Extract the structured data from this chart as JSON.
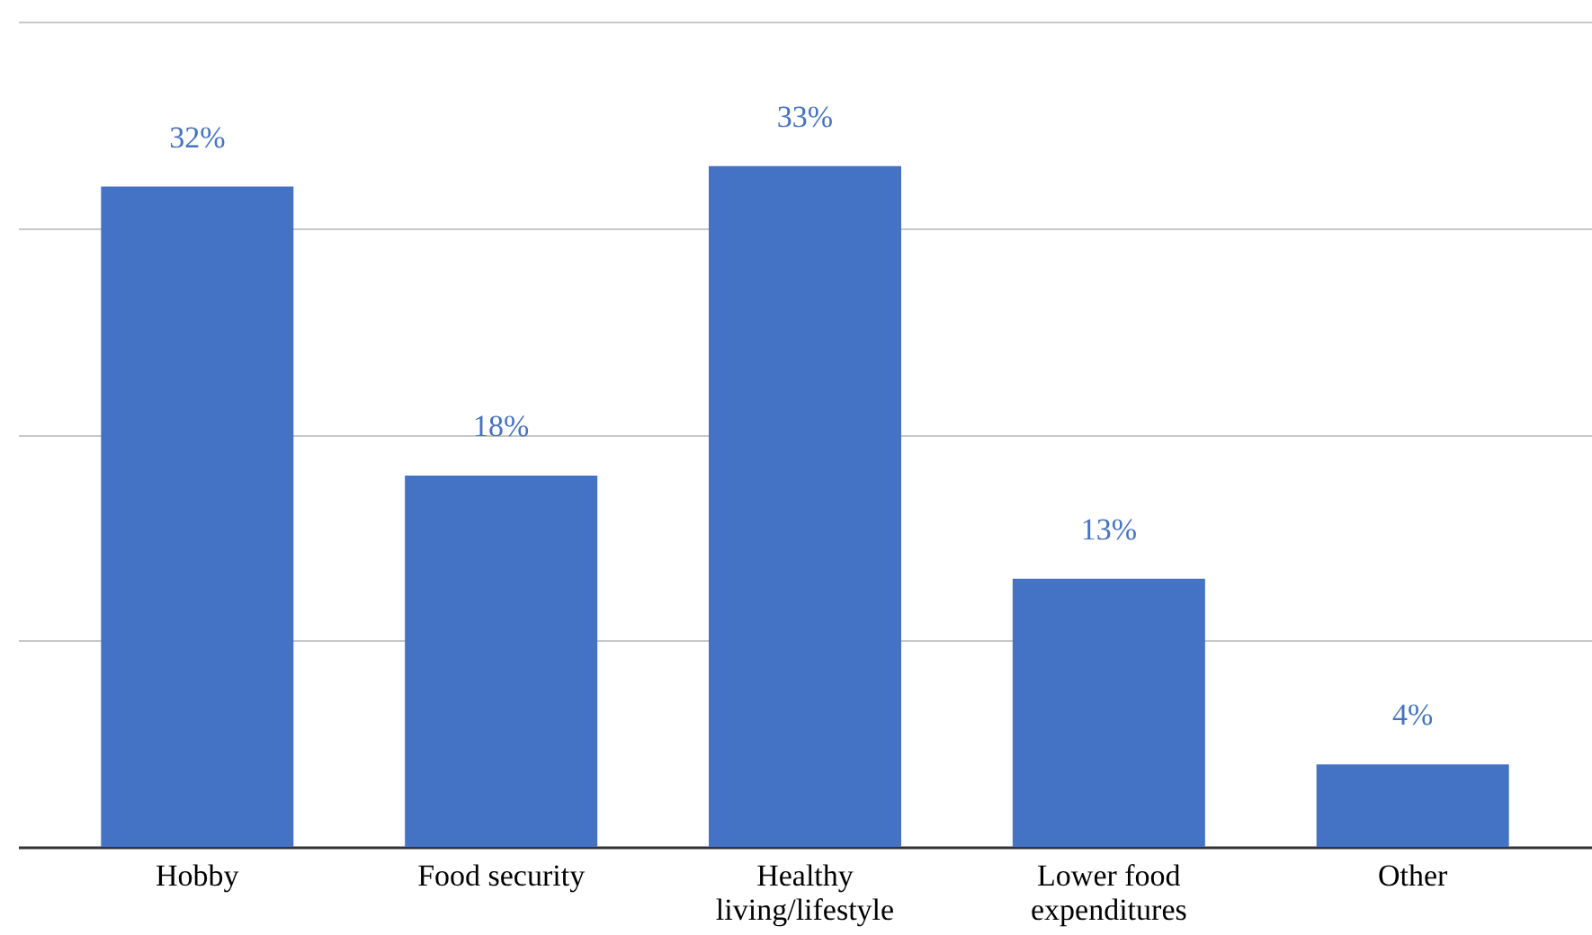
{
  "chart_data": {
    "type": "bar",
    "categories": [
      "Hobby",
      "Food security",
      "Healthy living/lifestyle",
      "Lower food expenditures",
      "Other"
    ],
    "values": [
      32,
      18,
      33,
      13,
      4
    ],
    "value_labels": [
      "32%",
      "18%",
      "33%",
      "13%",
      "4%"
    ],
    "color": "#4472c4",
    "ylim": [
      0,
      40
    ],
    "yticks": [
      {
        "value": 0,
        "label": null
      },
      {
        "value": 10,
        "label": null
      },
      {
        "value": 20,
        "label": null
      },
      {
        "value": 30,
        "label": null
      },
      {
        "value": 40,
        "label": null
      }
    ],
    "tick_labels": "x",
    "grid": "y"
  }
}
